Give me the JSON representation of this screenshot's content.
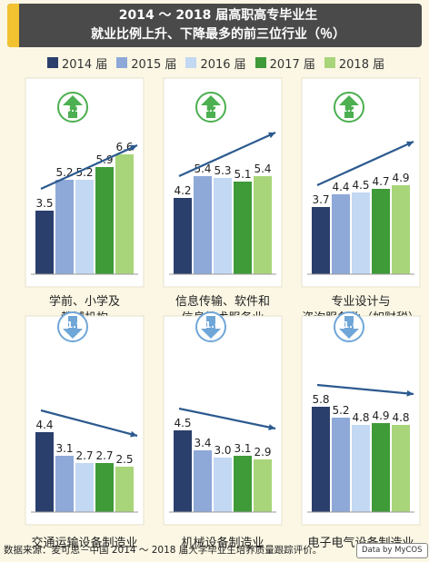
{
  "title": {
    "line1": "2014 ～ 2018 届高职高专毕业生",
    "line2": "就业比例上升、下降最多的前三位行业（％）"
  },
  "legend": [
    "2014 届",
    "2015 届",
    "2016 届",
    "2017 届",
    "2018 届"
  ],
  "colors": [
    "#2b3f6c",
    "#8ea8d8",
    "#c3d8f2",
    "#3f9a38",
    "#a9d57a"
  ],
  "arrow_up_color": "#4caf50",
  "arrow_down_color": "#6fa6d8",
  "trend_line_color": "#2c5a8f",
  "source": "数据来源：麦可思－中国 2014 ～ 2018 届大学毕业生培养质量跟踪评价。",
  "brand": "Data by MyCOS",
  "chart_data": [
    {
      "type": "bar",
      "category": [
        "学前、小学及",
        "教辅机构"
      ],
      "values": [
        3.5,
        5.2,
        5.2,
        5.9,
        6.6
      ],
      "labels": [
        "3.5",
        "5.2",
        "5.2",
        "5.9",
        "6.6"
      ],
      "change": "3.1",
      "direction": "up"
    },
    {
      "type": "bar",
      "category": [
        "信息传输、软件和",
        "信息技术服务业"
      ],
      "values": [
        4.2,
        5.4,
        5.3,
        5.1,
        5.4
      ],
      "labels": [
        "4.2",
        "5.4",
        "5.3",
        "5.1",
        "5.4"
      ],
      "change": "1.2",
      "direction": "up"
    },
    {
      "type": "bar",
      "category": [
        "专业设计与",
        "咨询服务业（如财税）"
      ],
      "values": [
        3.7,
        4.4,
        4.5,
        4.7,
        4.9
      ],
      "labels": [
        "3.7",
        "4.4",
        "4.5",
        "4.7",
        "4.9"
      ],
      "change": "1.2",
      "direction": "up"
    },
    {
      "type": "bar",
      "category": [
        "交通运输设备制造业"
      ],
      "values": [
        4.4,
        3.1,
        2.7,
        2.7,
        2.5
      ],
      "labels": [
        "4.4",
        "3.1",
        "2.7",
        "2.7",
        "2.5"
      ],
      "change": "-1.9",
      "direction": "down"
    },
    {
      "type": "bar",
      "category": [
        "机械设备制造业"
      ],
      "values": [
        4.5,
        3.4,
        3.0,
        3.1,
        2.9
      ],
      "labels": [
        "4.5",
        "3.4",
        "3.0",
        "3.1",
        "2.9"
      ],
      "change": "-1.6",
      "direction": "down"
    },
    {
      "type": "bar",
      "category": [
        "电子电气设备制造业"
      ],
      "values": [
        5.8,
        5.2,
        4.8,
        4.9,
        4.8
      ],
      "labels": [
        "5.8",
        "5.2",
        "4.8",
        "4.9",
        "4.8"
      ],
      "change": "-1.0",
      "direction": "down"
    }
  ]
}
